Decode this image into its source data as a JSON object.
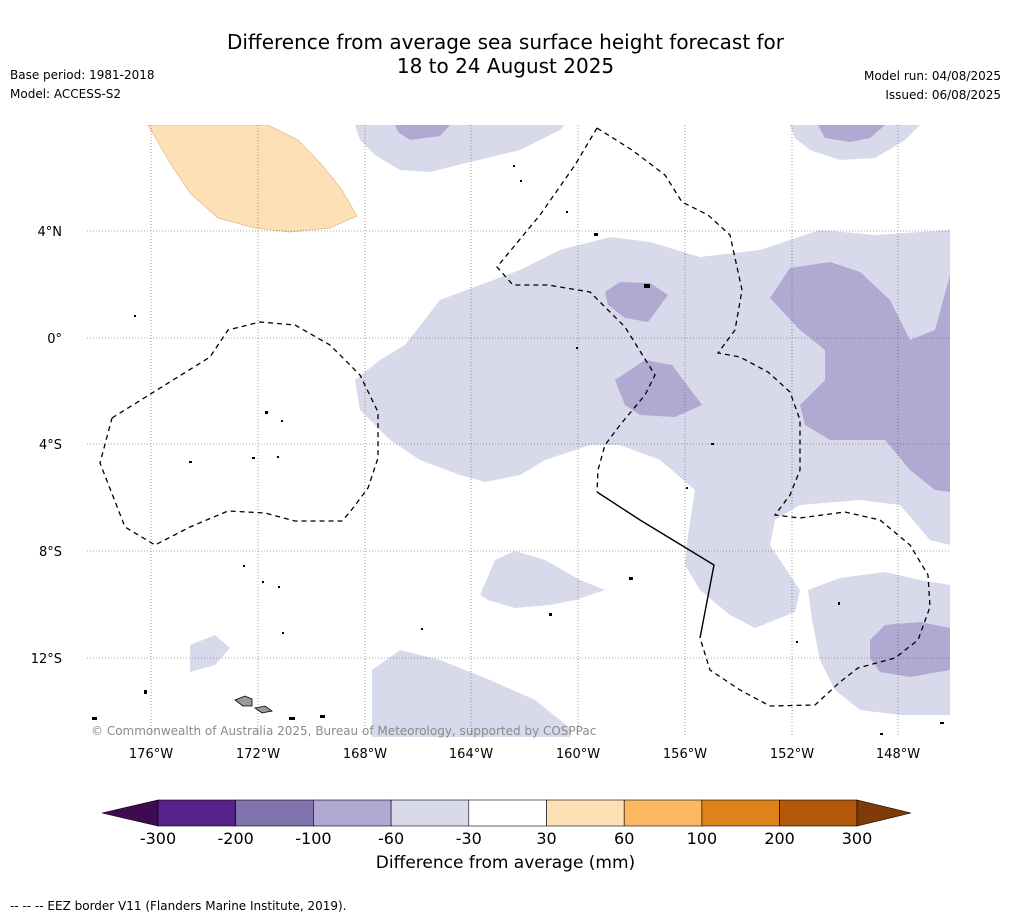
{
  "title_line1": "Difference from average sea surface height forecast for",
  "title_line2": "18 to 24 August 2025",
  "base_period": "Base period: 1981-2018",
  "model": "Model: ACCESS-S2",
  "model_run": "Model run: 04/08/2025",
  "issued": "Issued: 06/08/2025",
  "lat_ticks": [
    "4°N",
    "0°",
    "4°S",
    "8°S",
    "12°S"
  ],
  "lon_ticks": [
    "176°W",
    "172°W",
    "168°W",
    "164°W",
    "160°W",
    "156°W",
    "152°W",
    "148°W"
  ],
  "copyright": "© Commonwealth of Australia 2025, Bureau of Meteorology, supported by COSPPac",
  "colorbar": {
    "label": "Difference from average (mm)",
    "tick_labels": [
      "-300",
      "-200",
      "-100",
      "-60",
      "-30",
      "30",
      "60",
      "100",
      "200",
      "300"
    ],
    "colors": [
      "#3f0a4f",
      "#56228a",
      "#8073ac",
      "#b1a9d1",
      "#d8d9ea",
      "#ffffff",
      "#fde0b6",
      "#fbb862",
      "#e0821b",
      "#b35808",
      "#7f3b08"
    ]
  },
  "footer": "--  --  -- EEZ border V11 (Flanders Marine Institute, 2019)."
}
